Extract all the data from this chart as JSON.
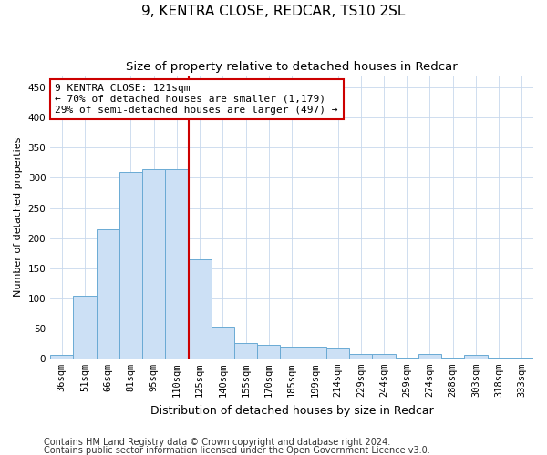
{
  "title1": "9, KENTRA CLOSE, REDCAR, TS10 2SL",
  "title2": "Size of property relative to detached houses in Redcar",
  "xlabel": "Distribution of detached houses by size in Redcar",
  "ylabel": "Number of detached properties",
  "categories": [
    "36sqm",
    "51sqm",
    "66sqm",
    "81sqm",
    "95sqm",
    "110sqm",
    "125sqm",
    "140sqm",
    "155sqm",
    "170sqm",
    "185sqm",
    "199sqm",
    "214sqm",
    "229sqm",
    "244sqm",
    "259sqm",
    "274sqm",
    "288sqm",
    "303sqm",
    "318sqm",
    "333sqm"
  ],
  "values": [
    5,
    104,
    215,
    310,
    315,
    315,
    165,
    52,
    25,
    22,
    19,
    19,
    18,
    7,
    7,
    1,
    7,
    1,
    5,
    1,
    1
  ],
  "bar_color": "#cce0f5",
  "bar_edge_color": "#6aaad4",
  "vline_color": "#cc0000",
  "annotation_text": "9 KENTRA CLOSE: 121sqm\n← 70% of detached houses are smaller (1,179)\n29% of semi-detached houses are larger (497) →",
  "annotation_box_color": "#ffffff",
  "annotation_box_edge_color": "#cc0000",
  "footnote1": "Contains HM Land Registry data © Crown copyright and database right 2024.",
  "footnote2": "Contains public sector information licensed under the Open Government Licence v3.0.",
  "ylim": [
    0,
    470
  ],
  "yticks": [
    0,
    50,
    100,
    150,
    200,
    250,
    300,
    350,
    400,
    450
  ],
  "title1_fontsize": 11,
  "title2_fontsize": 9.5,
  "xlabel_fontsize": 9,
  "ylabel_fontsize": 8,
  "tick_fontsize": 7.5,
  "footnote_fontsize": 7
}
